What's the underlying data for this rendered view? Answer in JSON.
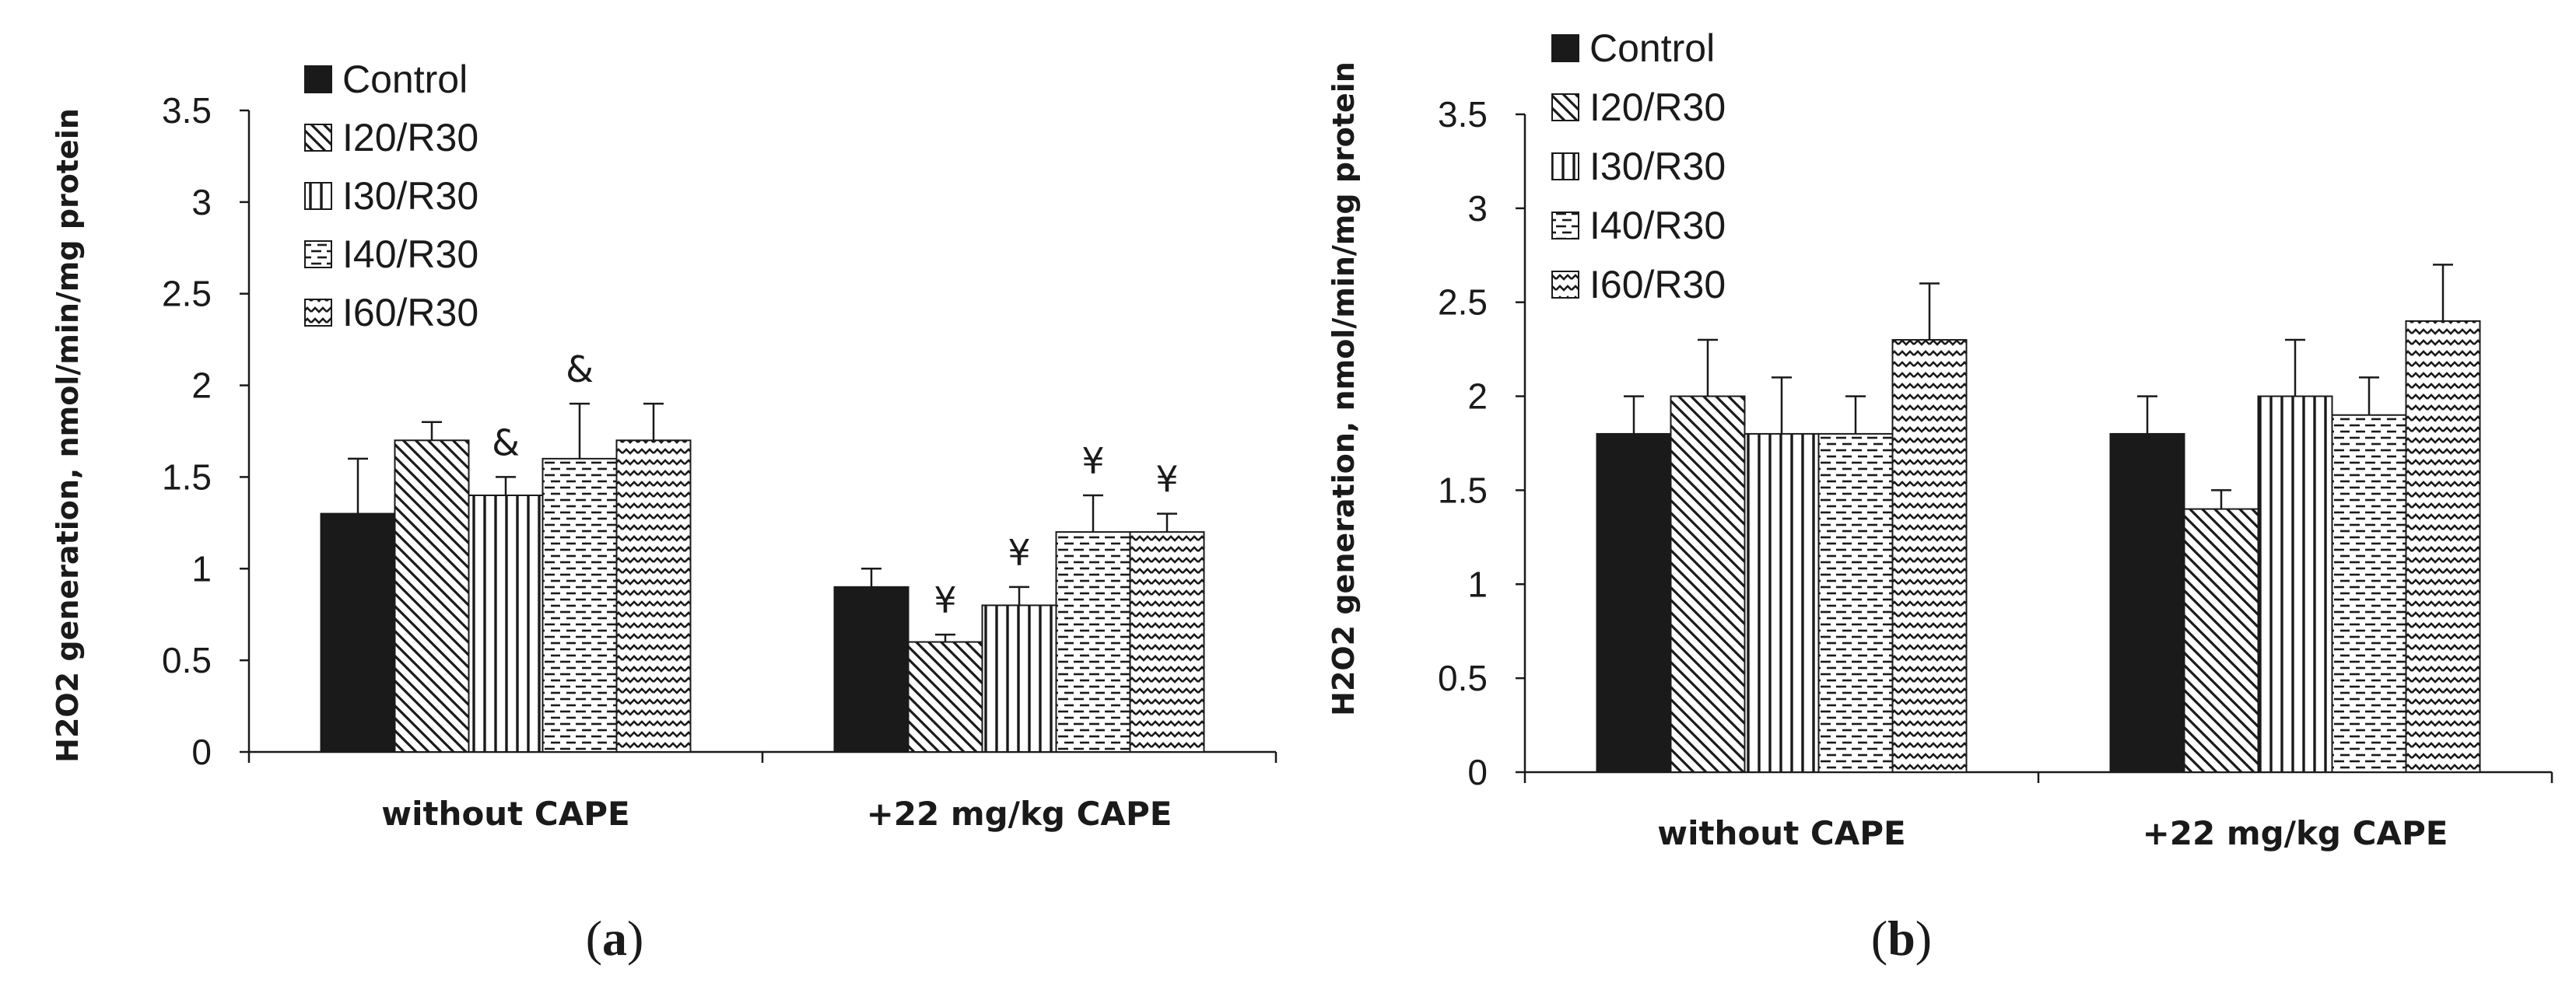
{
  "colors": {
    "ink": "#1a1a1a",
    "background": "#ffffff"
  },
  "chart_data": [
    {
      "type": "bar",
      "panel_label": {
        "open": "(",
        "letter": "a",
        "close": ")"
      },
      "ylabel": "H2O2 generation, nmol/min/mg protein",
      "xlabel": "",
      "ylim": [
        0,
        3.5
      ],
      "yticks": [
        "0",
        "0.5",
        "1",
        "1.5",
        "2",
        "2.5",
        "3",
        "3.5"
      ],
      "categories": [
        "without CAPE",
        "+22 mg/kg CAPE"
      ],
      "legend_position": "top-left",
      "series": [
        {
          "name": "Control",
          "pattern": "solid",
          "values": [
            1.3,
            0.9
          ],
          "errors": [
            0.3,
            0.1
          ]
        },
        {
          "name": "I20/R30",
          "pattern": "diagBack",
          "values": [
            1.7,
            0.6
          ],
          "errors": [
            0.1,
            0.04
          ]
        },
        {
          "name": "I30/R30",
          "pattern": "vertical",
          "values": [
            1.4,
            0.8
          ],
          "errors": [
            0.1,
            0.1
          ]
        },
        {
          "name": "I40/R30",
          "pattern": "dashHoriz",
          "values": [
            1.6,
            1.2
          ],
          "errors": [
            0.3,
            0.2
          ]
        },
        {
          "name": "I60/R30",
          "pattern": "zigzag",
          "values": [
            1.7,
            1.2
          ],
          "errors": [
            0.2,
            0.1
          ]
        }
      ],
      "annotations": [
        {
          "text": "&",
          "category": 0,
          "series": 2
        },
        {
          "text": "&",
          "category": 0,
          "series": 3
        },
        {
          "text": "¥",
          "category": 1,
          "series": 1
        },
        {
          "text": "¥",
          "category": 1,
          "series": 2
        },
        {
          "text": "¥",
          "category": 1,
          "series": 3
        },
        {
          "text": "¥",
          "category": 1,
          "series": 4
        }
      ]
    },
    {
      "type": "bar",
      "panel_label": {
        "open": "(",
        "letter": "b",
        "close": ")"
      },
      "ylabel": "H2O2 generation, nmol/min/mg protein",
      "xlabel": "",
      "ylim": [
        0,
        3.5
      ],
      "yticks": [
        "0",
        "0.5",
        "1",
        "1.5",
        "2",
        "2.5",
        "3",
        "3.5"
      ],
      "categories": [
        "without CAPE",
        "+22 mg/kg CAPE"
      ],
      "legend_position": "top-left",
      "series": [
        {
          "name": "Control",
          "pattern": "solid",
          "values": [
            1.8,
            1.8
          ],
          "errors": [
            0.2,
            0.2
          ]
        },
        {
          "name": "I20/R30",
          "pattern": "diagBack",
          "values": [
            2.0,
            1.4
          ],
          "errors": [
            0.3,
            0.1
          ]
        },
        {
          "name": "I30/R30",
          "pattern": "vertical",
          "values": [
            1.8,
            2.0
          ],
          "errors": [
            0.3,
            0.3
          ]
        },
        {
          "name": "I40/R30",
          "pattern": "dashHoriz",
          "values": [
            1.8,
            1.9
          ],
          "errors": [
            0.2,
            0.2
          ]
        },
        {
          "name": "I60/R30",
          "pattern": "zigzag",
          "values": [
            2.3,
            2.4
          ],
          "errors": [
            0.3,
            0.3
          ]
        }
      ],
      "annotations": []
    }
  ]
}
